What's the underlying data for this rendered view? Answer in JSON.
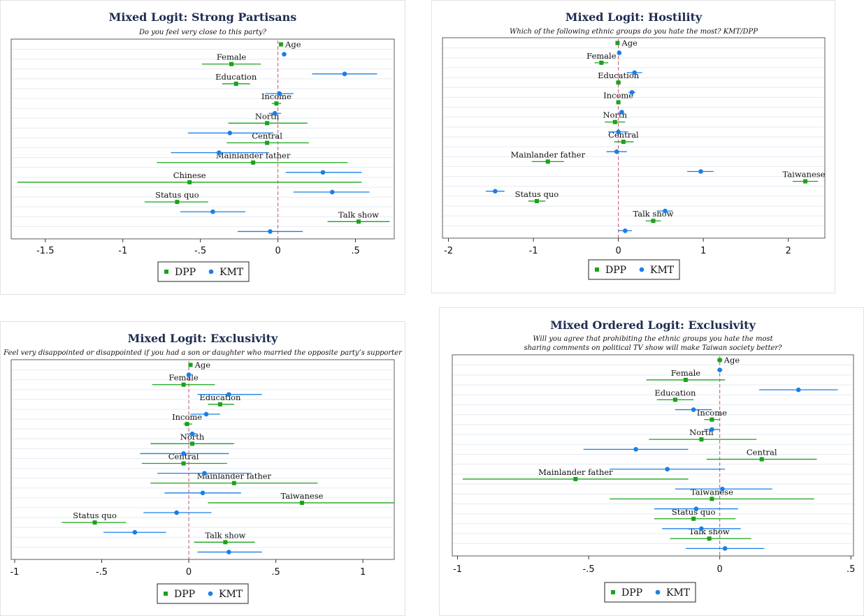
{
  "legend": {
    "dpp_label": "DPP",
    "kmt_label": "KMT"
  },
  "colors": {
    "dpp": "#1aa31a",
    "kmt": "#1a7fe6",
    "zero_line": "#c0557a",
    "title": "#1e2d50",
    "grid": "#e6ecf2"
  },
  "chart_data": [
    {
      "type": "scatter",
      "subtype": "coefficient-plot",
      "title": "Mixed Logit: Strong Partisans",
      "subtitle": [
        "Do you feel very close to this party?"
      ],
      "xlim": [
        -1.72,
        0.75
      ],
      "xticks": [
        -1.5,
        -1,
        -0.5,
        0,
        0.5
      ],
      "xtick_labels": [
        "-1.5",
        "-1",
        "-.5",
        "0",
        ".5"
      ],
      "series": [
        {
          "name": "DPP",
          "points": [
            {
              "label": "Age",
              "est": 0.02,
              "lo": 0.01,
              "hi": 0.03
            },
            {
              "label": "Female",
              "est": -0.3,
              "lo": -0.49,
              "hi": -0.11
            },
            {
              "label": "Education",
              "est": -0.27,
              "lo": -0.36,
              "hi": -0.18
            },
            {
              "label": "Income",
              "est": -0.01,
              "lo": -0.04,
              "hi": 0.02
            },
            {
              "label": "North",
              "est": -0.07,
              "lo": -0.32,
              "hi": 0.19
            },
            {
              "label": "Central",
              "est": -0.07,
              "lo": -0.33,
              "hi": 0.2
            },
            {
              "label": "Mainlander father",
              "est": -0.16,
              "lo": -0.78,
              "hi": 0.45
            },
            {
              "label": "Chinese",
              "est": -0.57,
              "lo": -1.68,
              "hi": 0.54
            },
            {
              "label": "Status quo",
              "est": -0.65,
              "lo": -0.86,
              "hi": -0.45
            },
            {
              "label": "Talk show",
              "est": 0.52,
              "lo": 0.32,
              "hi": 0.72
            }
          ]
        },
        {
          "name": "KMT",
          "points": [
            {
              "label": "Age",
              "est": 0.04,
              "lo": 0.03,
              "hi": 0.05
            },
            {
              "label": "Female",
              "est": 0.43,
              "lo": 0.22,
              "hi": 0.64
            },
            {
              "label": "Education",
              "est": 0.01,
              "lo": -0.08,
              "hi": 0.1
            },
            {
              "label": "Income",
              "est": -0.02,
              "lo": -0.06,
              "hi": 0.02
            },
            {
              "label": "North",
              "est": -0.31,
              "lo": -0.58,
              "hi": -0.03
            },
            {
              "label": "Central",
              "est": -0.38,
              "lo": -0.69,
              "hi": -0.07
            },
            {
              "label": "Mainlander father",
              "est": 0.29,
              "lo": 0.05,
              "hi": 0.54
            },
            {
              "label": "Chinese",
              "est": 0.35,
              "lo": 0.1,
              "hi": 0.59
            },
            {
              "label": "Status quo",
              "est": -0.42,
              "lo": -0.63,
              "hi": -0.21
            },
            {
              "label": "Talk show",
              "est": -0.05,
              "lo": -0.26,
              "hi": 0.16
            }
          ]
        }
      ]
    },
    {
      "type": "scatter",
      "subtype": "coefficient-plot",
      "title": "Mixed Logit: Hostility",
      "subtitle": [
        "Which of the following ethnic groups do you hate the most? KMT/DPP"
      ],
      "xlim": [
        -2.07,
        2.43
      ],
      "xticks": [
        -2,
        -1,
        0,
        1,
        2
      ],
      "xtick_labels": [
        "-2",
        "-1",
        "0",
        "1",
        "2"
      ],
      "series": [
        {
          "name": "DPP",
          "points": [
            {
              "label": "Age",
              "est": -0.01,
              "lo": -0.02,
              "hi": 0.0
            },
            {
              "label": "Female",
              "est": -0.2,
              "lo": -0.28,
              "hi": -0.12
            },
            {
              "label": "Education",
              "est": 0.0,
              "lo": -0.03,
              "hi": 0.03
            },
            {
              "label": "Income",
              "est": 0.0,
              "lo": -0.02,
              "hi": 0.02
            },
            {
              "label": "North",
              "est": -0.04,
              "lo": -0.16,
              "hi": 0.08
            },
            {
              "label": "Central",
              "est": 0.06,
              "lo": -0.05,
              "hi": 0.18
            },
            {
              "label": "Mainlander father",
              "est": -0.83,
              "lo": -1.02,
              "hi": -0.64
            },
            {
              "label": "Taiwanese",
              "est": 2.2,
              "lo": 2.05,
              "hi": 2.35
            },
            {
              "label": "Status quo",
              "est": -0.96,
              "lo": -1.06,
              "hi": -0.86
            },
            {
              "label": "Talk show",
              "est": 0.41,
              "lo": 0.32,
              "hi": 0.5
            }
          ]
        },
        {
          "name": "KMT",
          "points": [
            {
              "label": "Age",
              "est": 0.01,
              "lo": 0.0,
              "hi": 0.02
            },
            {
              "label": "Female",
              "est": 0.19,
              "lo": 0.1,
              "hi": 0.28
            },
            {
              "label": "Education",
              "est": 0.16,
              "lo": 0.12,
              "hi": 0.2
            },
            {
              "label": "Income",
              "est": 0.04,
              "lo": 0.02,
              "hi": 0.06
            },
            {
              "label": "North",
              "est": 0.0,
              "lo": -0.12,
              "hi": 0.12
            },
            {
              "label": "Central",
              "est": -0.02,
              "lo": -0.14,
              "hi": 0.1
            },
            {
              "label": "Mainlander father",
              "est": 0.97,
              "lo": 0.81,
              "hi": 1.12
            },
            {
              "label": "Taiwanese",
              "est": -1.45,
              "lo": -1.56,
              "hi": -1.34
            },
            {
              "label": "Status quo",
              "est": 0.55,
              "lo": 0.46,
              "hi": 0.64
            },
            {
              "label": "Talk show",
              "est": 0.08,
              "lo": 0.0,
              "hi": 0.16
            }
          ]
        }
      ]
    },
    {
      "type": "scatter",
      "subtype": "coefficient-plot",
      "title": "Mixed Logit: Exclusivity",
      "subtitle": [
        "Feel very disappointed or disappointed if you had a son or daughter who married the opposite party’s supporter"
      ],
      "xlim": [
        -1.02,
        1.18
      ],
      "xticks": [
        -1,
        -0.5,
        0,
        0.5,
        1
      ],
      "xtick_labels": [
        "-1",
        "-.5",
        "0",
        ".5",
        "1"
      ],
      "series": [
        {
          "name": "DPP",
          "points": [
            {
              "label": "Age",
              "est": 0.01,
              "lo": 0.0,
              "hi": 0.02
            },
            {
              "label": "Female",
              "est": -0.03,
              "lo": -0.21,
              "hi": 0.15
            },
            {
              "label": "Education",
              "est": 0.18,
              "lo": 0.11,
              "hi": 0.26
            },
            {
              "label": "Income",
              "est": -0.01,
              "lo": -0.03,
              "hi": 0.02
            },
            {
              "label": "North",
              "est": 0.02,
              "lo": -0.22,
              "hi": 0.26
            },
            {
              "label": "Central",
              "est": -0.03,
              "lo": -0.27,
              "hi": 0.22
            },
            {
              "label": "Mainlander father",
              "est": 0.26,
              "lo": -0.22,
              "hi": 0.74
            },
            {
              "label": "Taiwanese",
              "est": 0.65,
              "lo": 0.11,
              "hi": 1.18
            },
            {
              "label": "Status quo",
              "est": -0.54,
              "lo": -0.73,
              "hi": -0.36
            },
            {
              "label": "Talk show",
              "est": 0.21,
              "lo": 0.03,
              "hi": 0.38
            }
          ]
        },
        {
          "name": "KMT",
          "points": [
            {
              "label": "Age",
              "est": 0.0,
              "lo": -0.01,
              "hi": 0.01
            },
            {
              "label": "Female",
              "est": 0.23,
              "lo": 0.05,
              "hi": 0.42
            },
            {
              "label": "Education",
              "est": 0.1,
              "lo": 0.01,
              "hi": 0.18
            },
            {
              "label": "Income",
              "est": 0.02,
              "lo": -0.01,
              "hi": 0.05
            },
            {
              "label": "North",
              "est": -0.03,
              "lo": -0.28,
              "hi": 0.23
            },
            {
              "label": "Central",
              "est": 0.09,
              "lo": -0.18,
              "hi": 0.36
            },
            {
              "label": "Mainlander father",
              "est": 0.08,
              "lo": -0.14,
              "hi": 0.3
            },
            {
              "label": "Taiwanese",
              "est": -0.07,
              "lo": -0.26,
              "hi": 0.13
            },
            {
              "label": "Status quo",
              "est": -0.31,
              "lo": -0.49,
              "hi": -0.13
            },
            {
              "label": "Talk show",
              "est": 0.23,
              "lo": 0.05,
              "hi": 0.42
            }
          ]
        }
      ]
    },
    {
      "type": "scatter",
      "subtype": "coefficient-plot",
      "title": "Mixed Ordered Logit: Exclusivity",
      "subtitle": [
        "Will you agree that prohibiting the ethnic groups you hate the most",
        "sharing comments on political TV show will make Taiwan society better?"
      ],
      "xlim": [
        -1.02,
        0.51
      ],
      "xticks": [
        -1,
        -0.5,
        0,
        0.5
      ],
      "xtick_labels": [
        "-1",
        "-.5",
        "0",
        ".5"
      ],
      "series": [
        {
          "name": "DPP",
          "points": [
            {
              "label": "Age",
              "est": 0.0,
              "lo": -0.01,
              "hi": 0.01
            },
            {
              "label": "Female",
              "est": -0.13,
              "lo": -0.28,
              "hi": 0.02
            },
            {
              "label": "Education",
              "est": -0.17,
              "lo": -0.24,
              "hi": -0.1
            },
            {
              "label": "Income",
              "est": -0.03,
              "lo": -0.06,
              "hi": 0.0
            },
            {
              "label": "North",
              "est": -0.07,
              "lo": -0.27,
              "hi": 0.14
            },
            {
              "label": "Central",
              "est": 0.16,
              "lo": -0.05,
              "hi": 0.37
            },
            {
              "label": "Mainlander father",
              "est": -0.55,
              "lo": -0.98,
              "hi": -0.12
            },
            {
              "label": "Taiwanese",
              "est": -0.03,
              "lo": -0.42,
              "hi": 0.36
            },
            {
              "label": "Status quo",
              "est": -0.1,
              "lo": -0.25,
              "hi": 0.06
            },
            {
              "label": "Talk show",
              "est": -0.04,
              "lo": -0.19,
              "hi": 0.12
            }
          ]
        },
        {
          "name": "KMT",
          "points": [
            {
              "label": "Age",
              "est": 0.0,
              "lo": -0.01,
              "hi": 0.01
            },
            {
              "label": "Female",
              "est": 0.3,
              "lo": 0.15,
              "hi": 0.45
            },
            {
              "label": "Education",
              "est": -0.1,
              "lo": -0.17,
              "hi": -0.03
            },
            {
              "label": "Income",
              "est": -0.03,
              "lo": -0.06,
              "hi": 0.0
            },
            {
              "label": "North",
              "est": -0.32,
              "lo": -0.52,
              "hi": -0.12
            },
            {
              "label": "Central",
              "est": -0.2,
              "lo": -0.42,
              "hi": 0.02
            },
            {
              "label": "Mainlander father",
              "est": 0.01,
              "lo": -0.17,
              "hi": 0.2
            },
            {
              "label": "Taiwanese",
              "est": -0.09,
              "lo": -0.25,
              "hi": 0.07
            },
            {
              "label": "Status quo",
              "est": -0.07,
              "lo": -0.22,
              "hi": 0.08
            },
            {
              "label": "Talk show",
              "est": 0.02,
              "lo": -0.13,
              "hi": 0.17
            }
          ]
        }
      ]
    }
  ]
}
